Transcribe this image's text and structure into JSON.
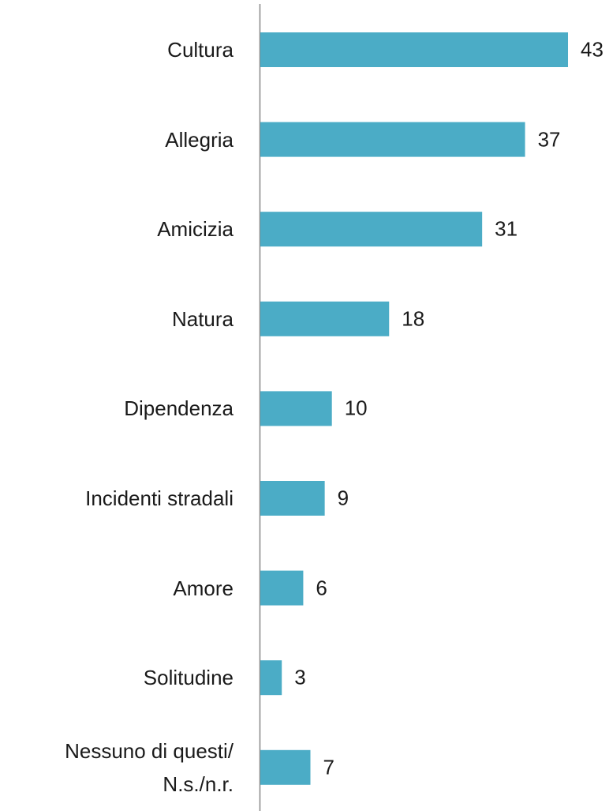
{
  "chart_data": {
    "type": "bar",
    "orientation": "horizontal",
    "categories": [
      "Cultura",
      "Allegria",
      "Amicizia",
      "Natura",
      "Dipendenza",
      "Incidenti stradali",
      "Amore",
      "Solitudine",
      "Nessuno di questi/\nN.s./n.r."
    ],
    "values": [
      43,
      37,
      31,
      18,
      10,
      9,
      6,
      3,
      7
    ],
    "color": "#4bacc6"
  }
}
